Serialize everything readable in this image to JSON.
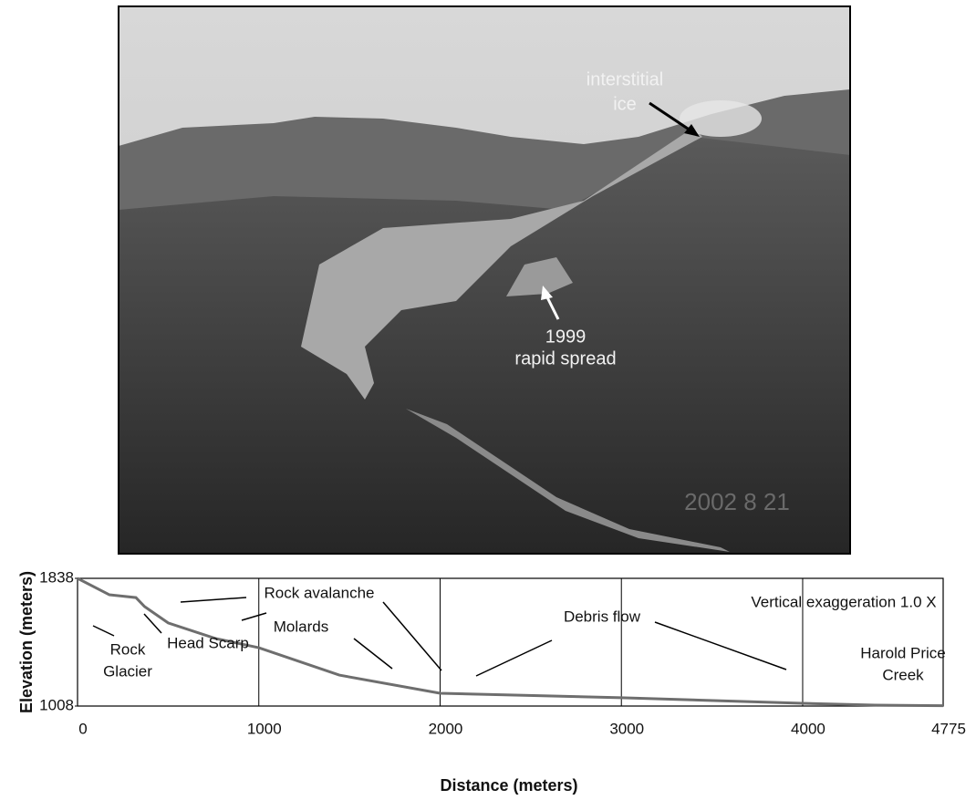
{
  "photo": {
    "annotations": [
      {
        "lines": [
          "interstitial",
          "ice"
        ]
      },
      {
        "lines": [
          "1999",
          "rapid spread"
        ]
      }
    ],
    "date_stamp": "2002   8  21"
  },
  "chart_data": {
    "type": "line",
    "x_label": "Distance (meters)",
    "y_label": "Elevation (meters)",
    "x": [
      0,
      176,
      322,
      370,
      500,
      761,
      1000,
      1444,
      2000,
      3000,
      4000,
      4400,
      4775
    ],
    "series": [
      {
        "color": "#6e6e6e",
        "values": [
          1838,
          1731,
          1713,
          1654,
          1548,
          1447,
          1387,
          1209,
          1091,
          1062,
          1026,
          1014,
          1010
        ]
      }
    ],
    "xlim": [
      0,
      4775
    ],
    "ylim": [
      1008,
      1838
    ],
    "xticks": [
      0,
      1000,
      2000,
      3000,
      4000,
      4775
    ],
    "yticks": [
      1008,
      1838
    ],
    "grid": true,
    "annotations": [
      {
        "lines": [
          "Rock avalanche"
        ]
      },
      {
        "lines": [
          "Molards"
        ]
      },
      {
        "lines": [
          "Debris flow"
        ]
      },
      {
        "lines": [
          "Rock",
          "Glacier"
        ]
      },
      {
        "lines": [
          "Head Scarp"
        ]
      },
      {
        "lines": [
          "Vertical exaggeration 1.0 X"
        ]
      },
      {
        "lines": [
          "Harold Price",
          "Creek"
        ]
      }
    ]
  }
}
